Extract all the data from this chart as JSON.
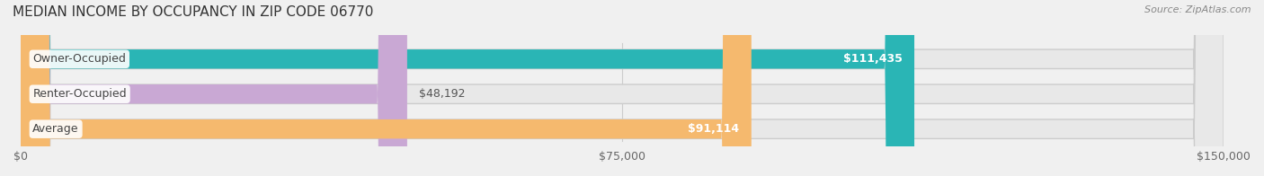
{
  "title": "MEDIAN INCOME BY OCCUPANCY IN ZIP CODE 06770",
  "source": "Source: ZipAtlas.com",
  "categories": [
    "Owner-Occupied",
    "Renter-Occupied",
    "Average"
  ],
  "values": [
    111435,
    48192,
    91114
  ],
  "max_value": 150000,
  "bar_colors": [
    "#2ab5b5",
    "#c9a8d4",
    "#f5b96e"
  ],
  "label_colors": [
    "white",
    "#555555",
    "white"
  ],
  "value_labels": [
    "$111,435",
    "$48,192",
    "$91,114"
  ],
  "x_ticks": [
    0,
    75000,
    150000
  ],
  "x_tick_labels": [
    "$0",
    "$75,000",
    "$150,000"
  ],
  "background_color": "#f0f0f0",
  "bar_bg_color": "#e8e8e8",
  "title_fontsize": 11,
  "source_fontsize": 8,
  "label_fontsize": 9,
  "value_fontsize": 9
}
